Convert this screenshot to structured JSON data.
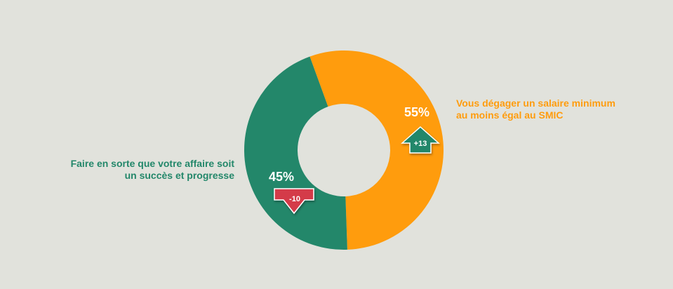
{
  "chart_data": {
    "type": "pie",
    "title": "",
    "donut": true,
    "start_angle_deg": -20,
    "series": [
      {
        "name": "Vous dégager un salaire minimum au moins égal au SMIC",
        "value": 55,
        "label": "55%",
        "color": "#ff9c0d",
        "change": 13,
        "change_label": "+13",
        "change_color": "#23876a",
        "change_direction": "up"
      },
      {
        "name": "Faire en sorte que votre affaire soit un succès et progresse",
        "value": 45,
        "label": "45%",
        "color": "#23876a",
        "change": -10,
        "change_label": "-10",
        "change_color": "#d43a4a",
        "change_direction": "down"
      }
    ],
    "legend": {
      "left": [
        "Faire en sorte que votre affaire soit",
        "un succès et progresse"
      ],
      "right": [
        "Vous dégager un salaire minimum",
        "au moins égal au SMIC"
      ]
    }
  }
}
